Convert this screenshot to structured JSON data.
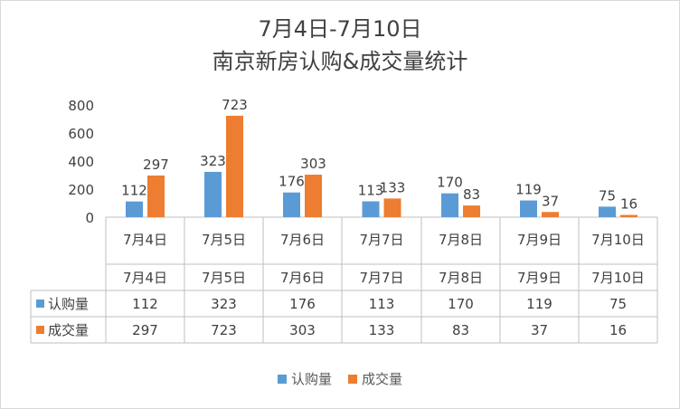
{
  "chart_data": {
    "type": "bar",
    "title_line1": "7月4日-7月10日",
    "title_line2": "南京新房认购&成交量统计",
    "categories": [
      "7月4日",
      "7月5日",
      "7月6日",
      "7月7日",
      "7月8日",
      "7月9日",
      "7月10日"
    ],
    "series": [
      {
        "name": "认购量",
        "color": "#5b9bd5",
        "values": [
          112,
          323,
          176,
          113,
          170,
          119,
          75
        ]
      },
      {
        "name": "成交量",
        "color": "#ed7d31",
        "values": [
          297,
          723,
          303,
          133,
          83,
          37,
          16
        ]
      }
    ],
    "y_ticks": [
      "0",
      "200",
      "400",
      "600",
      "800"
    ],
    "ylim": [
      0,
      800
    ],
    "grid": false,
    "legend_position": "bottom",
    "data_table": true,
    "colors": {
      "axis": "#bfbfbf",
      "text": "#404040",
      "frame": "#d9d9d9"
    }
  }
}
